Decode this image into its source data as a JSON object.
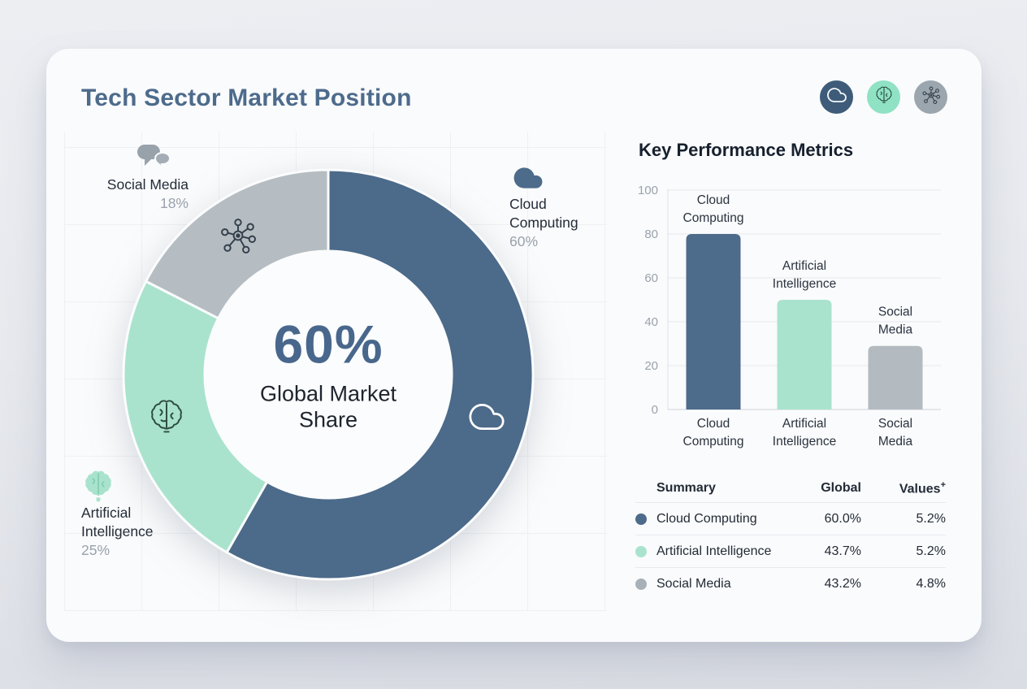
{
  "card": {
    "title": "Tech Sector Market Position"
  },
  "header_chips": [
    {
      "icon": "cloud-icon",
      "bg": "#3e5c79"
    },
    {
      "icon": "brain-icon",
      "bg": "#8fe2c4"
    },
    {
      "icon": "network-icon",
      "bg": "#9ca6ae"
    }
  ],
  "metrics": {
    "title": "Key Performance Metrics"
  },
  "table": {
    "headers": {
      "summary": "Summary",
      "global": "Global",
      "values": "Values",
      "values_sup": "+"
    },
    "rows": [
      {
        "name": "Cloud Computing",
        "color": "#4d6b8a",
        "global": "60.0%",
        "values": "5.2%"
      },
      {
        "name": "Artificial Intelligence",
        "color": "#a9e3cd",
        "global": "43.7%",
        "values": "5.2%"
      },
      {
        "name": "Social Media",
        "color": "#a9b1b8",
        "global": "43.2%",
        "values": "4.8%"
      }
    ]
  },
  "chart_data": [
    {
      "type": "pie",
      "subtype": "donut",
      "title": "Tech Sector Market Position",
      "center": {
        "value": "60%",
        "label": "Global Market Share"
      },
      "legend_position": "around",
      "segments": [
        {
          "label": "Cloud Computing",
          "value": 60,
          "display": "60%",
          "color": "#4c6a89",
          "icon": "cloud-icon"
        },
        {
          "label": "Artificial Intelligence",
          "value": 25,
          "display": "25%",
          "color": "#a9e3cd",
          "icon": "brain-icon"
        },
        {
          "label": "Social Media",
          "value": 18,
          "display": "18%",
          "color": "#b5bdc2",
          "icon": "network-icon"
        }
      ]
    },
    {
      "type": "bar",
      "title": "Key Performance Metrics",
      "categories": [
        "Cloud Computing",
        "Artificial Intelligence",
        "Social Media"
      ],
      "values": [
        80,
        50,
        29
      ],
      "colors": [
        "#4d6b8a",
        "#a9e3cd",
        "#b3bbc0"
      ],
      "xlabel": "",
      "ylabel": "",
      "ylim": [
        0,
        100
      ],
      "yticks": [
        0,
        20,
        40,
        60,
        80,
        100
      ],
      "grid": true,
      "bar_labels_above_bars": true
    }
  ]
}
